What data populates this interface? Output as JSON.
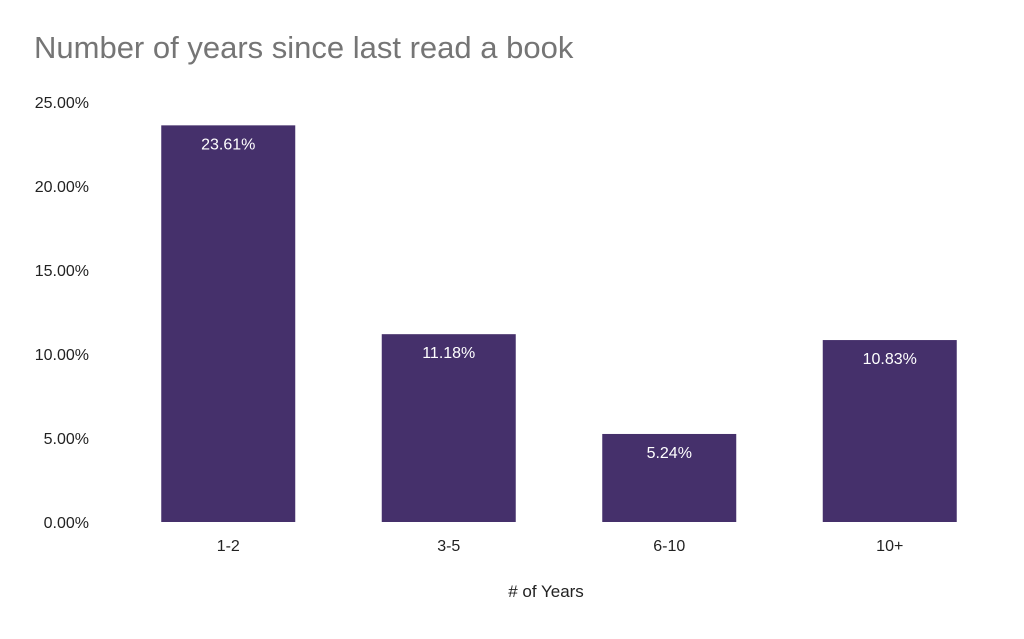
{
  "chart_data": {
    "type": "bar",
    "title": "Number of years since last read a book",
    "xlabel": "# of Years",
    "ylabel": "",
    "categories": [
      "1-2",
      "3-5",
      "6-10",
      "10+"
    ],
    "values": [
      23.61,
      11.18,
      5.24,
      10.83
    ],
    "value_labels": [
      "23.61%",
      "11.18%",
      "5.24%",
      "10.83%"
    ],
    "ylim": [
      0,
      25
    ],
    "yticks": [
      0,
      5,
      10,
      15,
      20,
      25
    ],
    "ytick_labels": [
      "0.00%",
      "5.00%",
      "10.00%",
      "15.00%",
      "20.00%",
      "25.00%"
    ],
    "grid": false,
    "legend": "none",
    "colors": {
      "bar": "#45306b",
      "value_label": "#ffffff",
      "title": "#757575",
      "text": "#222222"
    }
  }
}
